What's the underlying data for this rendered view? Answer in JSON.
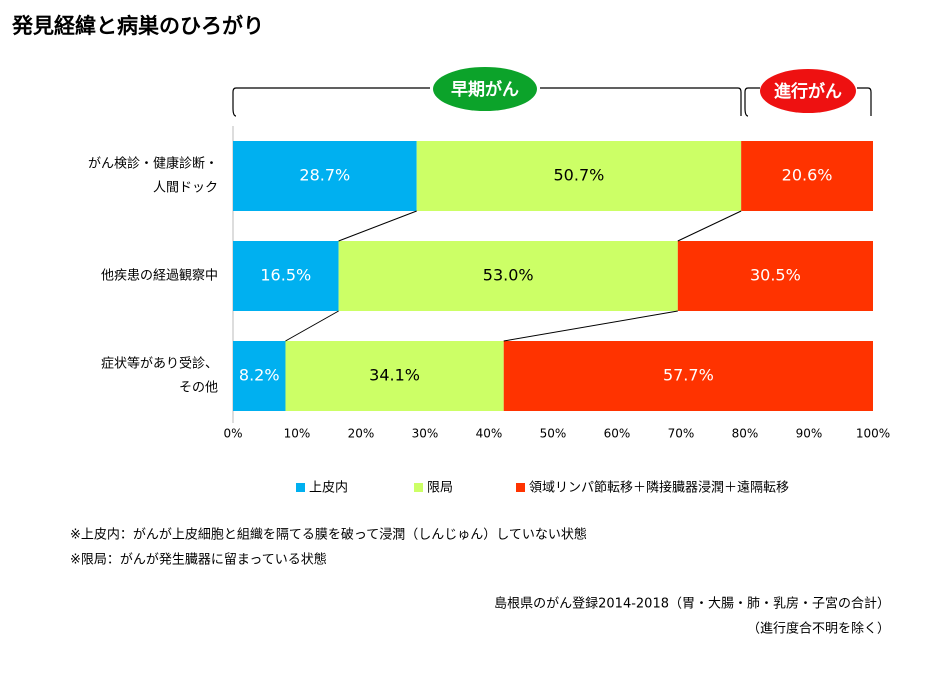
{
  "chart_data": {
    "type": "stacked_barh",
    "title": "発見経緯と病巣のひろがり",
    "categories": [
      [
        "がん検診・健康診断・",
        "人間ドック"
      ],
      [
        "他疾患の経過観察中"
      ],
      [
        "症状等があり受診、",
        "その他"
      ]
    ],
    "series": [
      {
        "name": "上皮内",
        "color": "#00b0f0",
        "values": [
          28.7,
          16.5,
          8.2
        ],
        "value_labels": [
          "28.7%",
          "16.5%",
          "8.2%"
        ]
      },
      {
        "name": "限局",
        "color": "#ccff66",
        "values": [
          50.7,
          53.0,
          34.1
        ],
        "value_labels": [
          "50.7%",
          "53.0%",
          "34.1%"
        ]
      },
      {
        "name": "領域リンパ節転移＋隣接臓器浸潤＋遠隔転移",
        "color": "#ff3300",
        "values": [
          20.6,
          30.5,
          57.7
        ],
        "value_labels": [
          "20.6%",
          "30.5%",
          "57.7%"
        ]
      }
    ],
    "xlim": [
      0,
      100
    ],
    "xticks": [
      {
        "value": 0,
        "label": "0%"
      },
      {
        "value": 10,
        "label": "10%"
      },
      {
        "value": 20,
        "label": "20%"
      },
      {
        "value": 30,
        "label": "30%"
      },
      {
        "value": 40,
        "label": "40%"
      },
      {
        "value": 50,
        "label": "50%"
      },
      {
        "value": 60,
        "label": "60%"
      },
      {
        "value": 70,
        "label": "70%"
      },
      {
        "value": 80,
        "label": "80%"
      },
      {
        "value": 90,
        "label": "90%"
      },
      {
        "value": 100,
        "label": "100%"
      }
    ],
    "annotations": {
      "early": "早期がん",
      "advanced": "進行がん"
    },
    "notes": [
      "※上皮内：がんが上皮細胞と組織を隔てる膜を破って浸潤（しんじゅん）していない状態",
      "※限局：がんが発生臓器に留まっている状態"
    ],
    "source": [
      "島根県のがん登録2014-2018（胃・大腸・肺・乳房・子宮の合計）",
      "（進行度合不明を除く）"
    ]
  }
}
